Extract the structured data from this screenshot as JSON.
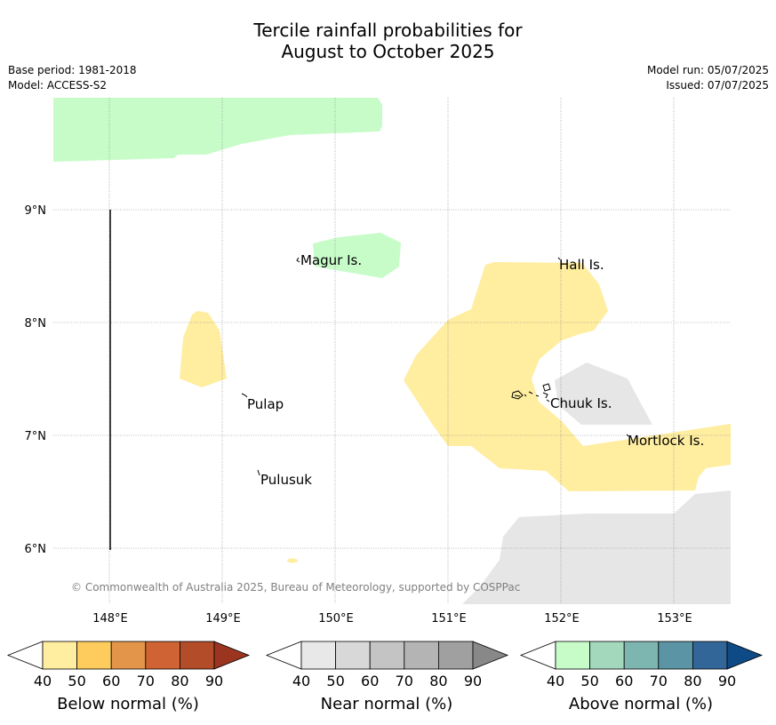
{
  "title_line1": "Tercile rainfall probabilities for",
  "title_line2": "August to October 2025",
  "base_period": "Base period: 1981-2018",
  "model": "Model: ACCESS-S2",
  "model_run": "Model run: 05/07/2025",
  "issued": "Issued: 07/07/2025",
  "copyright": "© Commonwealth of Australia 2025, Bureau of Meteorology, supported by COSPPac",
  "lat_labels": [
    "9°N",
    "8°N",
    "7°N",
    "6°N"
  ],
  "lon_labels": [
    "148°E",
    "149°E",
    "150°E",
    "151°E",
    "152°E",
    "153°E"
  ],
  "islands": [
    "Magur Is.",
    "Hall Is.",
    "Pulap",
    "Chuuk Is.",
    "Mortlock Is.",
    "Pulusuk"
  ],
  "legends": [
    {
      "caption": "Below normal (%)",
      "ticks": [
        "40",
        "50",
        "60",
        "70",
        "80",
        "90"
      ],
      "colors": [
        "#ffffff",
        "#ffeda0",
        "#fecc5c",
        "#e3964a",
        "#cf6333",
        "#b34c28",
        "#9b3520"
      ]
    },
    {
      "caption": "Near normal (%)",
      "ticks": [
        "40",
        "50",
        "60",
        "70",
        "80",
        "90"
      ],
      "colors": [
        "#ffffff",
        "#e8e8e8",
        "#d8d8d8",
        "#c4c4c4",
        "#b4b4b4",
        "#a0a0a0",
        "#888888"
      ]
    },
    {
      "caption": "Above normal (%)",
      "ticks": [
        "40",
        "50",
        "60",
        "70",
        "80",
        "90"
      ],
      "colors": [
        "#ffffff",
        "#c7fcc9",
        "#a3d8bd",
        "#7db5b0",
        "#5b94a4",
        "#336698",
        "#0e4a86"
      ]
    }
  ],
  "map_colors": {
    "below_40_50": "#ffeda0",
    "near_40_50": "#e6e6e6",
    "above_40_50": "#c7fcc9"
  }
}
